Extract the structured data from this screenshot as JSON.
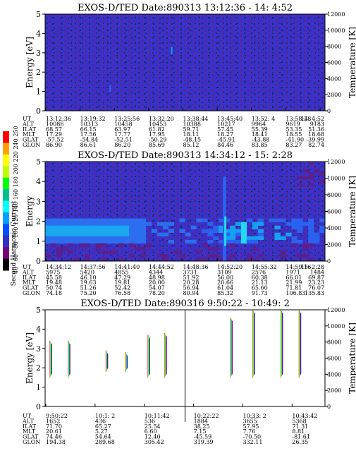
{
  "colors": {
    "background_blue": "#3a32c8",
    "pixel_purple": "#5a2090",
    "pixel_dark": "#222a6a",
    "colorbar": [
      "#000000",
      "#7a007a",
      "#3030c8",
      "#0050ff",
      "#00a0ff",
      "#00ffff",
      "#00c090",
      "#00ff00",
      "#c0ff00",
      "#ffff00",
      "#ffa000",
      "#ff0000"
    ]
  },
  "colorbar": {
    "label": "Second Harmonic Current",
    "ticks": [
      "40",
      "60",
      "80",
      "100",
      "120",
      "140",
      "160",
      "180",
      "200",
      "220",
      "240",
      "250"
    ]
  },
  "chart_data": [
    {
      "type": "heatmap",
      "title": "EXOS-D/TED   Date:890313  13:12:36 - 14: 4:52",
      "ylabel": "Energy [eV]",
      "y2label": "Temperature [K]",
      "ylim": [
        0,
        5
      ],
      "y2lim": [
        0,
        12000
      ],
      "yticks": [
        "0",
        "1",
        "2",
        "3",
        "4",
        "5"
      ],
      "y2ticks": [
        "0",
        "2000",
        "4000",
        "6000",
        "8000",
        "10000",
        "12000"
      ],
      "row_labels": [
        "UT",
        "ALT",
        "ILAT",
        "MLT",
        "GLAT",
        "GLON"
      ],
      "columns": [
        [
          "13:12:36",
          "10086",
          "68.57",
          "17.29",
          "-57.52",
          "86.90"
        ],
        [
          "13:19:32",
          "10313",
          "66.15",
          "17.56",
          "-54.84",
          "86.61"
        ],
        [
          "13:25:56",
          "10458",
          "63.97",
          "17.77",
          "-52.51",
          "86.20"
        ],
        [
          "13:32:20",
          "10453",
          "61.82",
          "17.95",
          "-50.29",
          "85.69"
        ],
        [
          "13:38:44",
          "10388",
          "59.71",
          "18.11",
          "-48.15",
          "85.12"
        ],
        [
          "13:45:40",
          "10217",
          "57.45",
          "18.27",
          "-45.91",
          "84.46"
        ],
        [
          "13:52: 4",
          "9964",
          "55.39",
          "18.41",
          "-43.88",
          "83.85"
        ],
        [
          "13:58:28",
          "9619",
          "53.35",
          "18.55",
          "-41.90",
          "83.27"
        ],
        [
          "14: 4:52",
          "9183",
          "51.36",
          "18.68",
          "-39.99",
          "82.74"
        ]
      ]
    },
    {
      "type": "heatmap",
      "title": "EXOS-D/TED   Date:890313  14:34:12 - 15: 2:28",
      "ylabel": "Energy",
      "y2label": "Temperature [K]",
      "ylim": [
        0,
        5
      ],
      "y2lim": [
        0,
        12000
      ],
      "yticks": [
        "0",
        "1",
        "2",
        "3",
        "4",
        "5"
      ],
      "y2ticks": [
        "0",
        "2000",
        "4000",
        "6000",
        "8000",
        "10000",
        "12000"
      ],
      "row_labels": [
        "UT",
        "ALT",
        "ILAT",
        "MLT",
        "GLAT",
        "GLON"
      ],
      "columns": [
        [
          "14:34:12",
          "5975",
          "45.58",
          "19.48",
          "50.74",
          "74.18"
        ],
        [
          "14:37:56",
          "5420",
          "46.10",
          "19.63",
          "51.26",
          "75.20"
        ],
        [
          "14:41:40",
          "4855",
          "47.29",
          "19.81",
          "52.42",
          "76.58"
        ],
        [
          "14:44:52",
          "4344",
          "48.98",
          "20.00",
          "54.07",
          "78.20"
        ],
        [
          "14:48:36",
          "3731",
          "51.92",
          "20.28",
          "56.94",
          "80.94"
        ],
        [
          "14:52:20",
          "3109",
          "56.00",
          "20.66",
          "61.04",
          "85.32"
        ],
        [
          "14:55:32",
          "2576",
          "60.38",
          "21.13",
          "65.60",
          "91.73"
        ],
        [
          "14:59:16",
          "1971",
          "66.01",
          "21.99",
          "71.81",
          "106.83"
        ],
        [
          "15: 2:28",
          "1484",
          "69.87",
          "23.23",
          "76.07",
          "135.83"
        ]
      ]
    },
    {
      "type": "heatmap",
      "title": "EXOS-D/TED   Date:890316  9:50:22 - 10:49: 2",
      "ylabel": "Energy [eV]",
      "y2label": "Temperature [K]",
      "ylim": [
        0,
        5
      ],
      "y2lim": [
        0,
        12000
      ],
      "yticks": [
        "0",
        "1",
        "2",
        "3",
        "4",
        "5"
      ],
      "y2ticks": [
        "0",
        "2000",
        "4000",
        "6000",
        "8000",
        "10000",
        "12000"
      ],
      "row_labels": [
        "UT",
        "ALT",
        "ILAT",
        "MLT",
        "GLAT",
        "GLON"
      ],
      "columns": [
        [
          "9:50:22",
          "1652",
          "71.70",
          "20.61",
          "74.46",
          "194.38"
        ],
        [
          "10:1: 2",
          "436",
          "65.27",
          "5.27",
          "54.64",
          "289.68"
        ],
        [
          "10:11:42",
          "536",
          "25.54",
          "6.60",
          "12.40",
          "305.42"
        ],
        [
          "10:22:22",
          "1884",
          "38.25",
          "7.15",
          "-45.59",
          "319.39"
        ],
        [
          "10:33: 2",
          "3655",
          "57.95",
          "7.76",
          "-70.50",
          "332.11"
        ],
        [
          "10:43:42",
          "5368",
          "71.31",
          "8.81",
          "-81.61",
          "26.35"
        ]
      ],
      "bursts": [
        {
          "x": 0.02,
          "y0": 1.5,
          "y1": 3.4
        },
        {
          "x": 0.085,
          "y0": 1.5,
          "y1": 3.4
        },
        {
          "x": 0.22,
          "y0": 1.8,
          "y1": 2.9
        },
        {
          "x": 0.29,
          "y0": 1.8,
          "y1": 2.8
        },
        {
          "x": 0.37,
          "y0": 1.5,
          "y1": 3.7
        },
        {
          "x": 0.43,
          "y0": 1.5,
          "y1": 3.8
        },
        {
          "x": 0.665,
          "y0": 1.5,
          "y1": 4.6
        },
        {
          "x": 0.745,
          "y0": 1.5,
          "y1": 5.0
        },
        {
          "x": 0.845,
          "y0": 1.5,
          "y1": 5.0
        },
        {
          "x": 0.91,
          "y0": 1.5,
          "y1": 5.0
        }
      ],
      "divider_x": 0.5
    }
  ]
}
